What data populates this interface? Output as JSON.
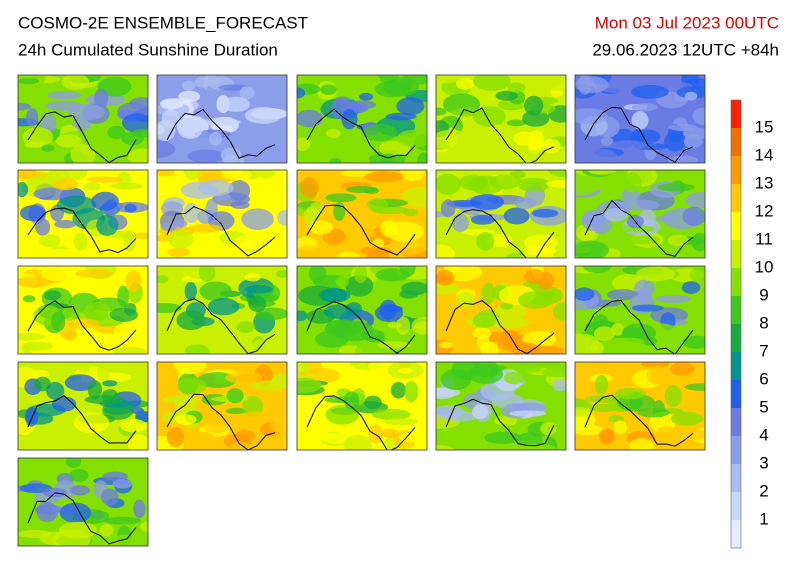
{
  "header": {
    "title": "COSMO-2E ENSEMBLE_FORECAST",
    "subtitle": "24h Cumulated Sunshine Duration",
    "valid_time": "Mon 03 Jul 2023 00UTC",
    "run_info": "29.06.2023 12UTC +84h"
  },
  "colorbar": {
    "labels": [
      1,
      2,
      3,
      4,
      5,
      6,
      7,
      8,
      9,
      10,
      11,
      12,
      13,
      14,
      15
    ],
    "colors": [
      "#e4ecff",
      "#c8d6fa",
      "#aabcf2",
      "#8c9eea",
      "#6a7ce4",
      "#2060f0",
      "#00968e",
      "#18aa3c",
      "#3cc81e",
      "#84e000",
      "#c8f000",
      "#ffff00",
      "#ffca00",
      "#ff9a00",
      "#f07000",
      "#ff2000"
    ]
  }
}
